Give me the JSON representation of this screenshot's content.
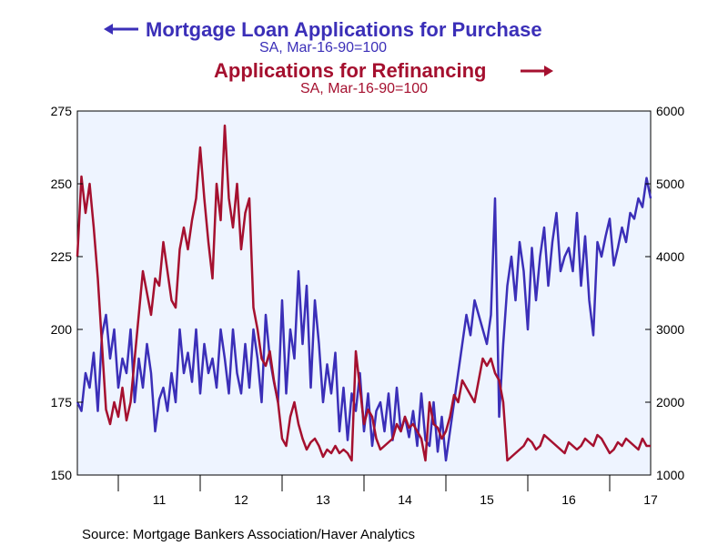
{
  "chart_data": {
    "type": "line",
    "title_purchase": "Mortgage Loan Applications for Purchase",
    "subtitle_purchase": "SA, Mar-16-90=100",
    "title_refi": "Applications for Refinancing",
    "subtitle_refi": "SA, Mar-16-90=100",
    "source": "Source:  Mortgage Bankers Association/Haver Analytics",
    "x_ticks": [
      "11",
      "12",
      "13",
      "14",
      "15",
      "16",
      "17"
    ],
    "x_tick_positions": [
      2011,
      2012,
      2013,
      2014,
      2015,
      2016,
      2017
    ],
    "xlim": [
      2010.0,
      2017.0
    ],
    "y_left": {
      "ylim": [
        150,
        275
      ],
      "ticks": [
        "275",
        "250",
        "225",
        "200",
        "175",
        "150"
      ],
      "tick_values": [
        275,
        250,
        225,
        200,
        175,
        150
      ]
    },
    "y_right": {
      "ylim": [
        1000,
        6000
      ],
      "ticks": [
        "6000",
        "5000",
        "4000",
        "3000",
        "2000",
        "1000"
      ],
      "tick_values": [
        6000,
        5000,
        4000,
        3000,
        2000,
        1000
      ]
    },
    "grid": false,
    "colors": {
      "purchase": "#3b2fb8",
      "refi": "#a5102f",
      "plot_bg": "#eef4ff"
    },
    "series": [
      {
        "name": "Mortgage Loan Applications for Purchase",
        "axis": "left",
        "x": [
          2010.0,
          2010.05,
          2010.1,
          2010.15,
          2010.2,
          2010.25,
          2010.3,
          2010.35,
          2010.4,
          2010.45,
          2010.5,
          2010.55,
          2010.6,
          2010.65,
          2010.7,
          2010.75,
          2010.8,
          2010.85,
          2010.9,
          2010.95,
          2011.0,
          2011.05,
          2011.1,
          2011.15,
          2011.2,
          2011.25,
          2011.3,
          2011.35,
          2011.4,
          2011.45,
          2011.5,
          2011.55,
          2011.6,
          2011.65,
          2011.7,
          2011.75,
          2011.8,
          2011.85,
          2011.9,
          2011.95,
          2012.0,
          2012.05,
          2012.1,
          2012.15,
          2012.2,
          2012.25,
          2012.3,
          2012.35,
          2012.4,
          2012.45,
          2012.5,
          2012.55,
          2012.6,
          2012.65,
          2012.7,
          2012.75,
          2012.8,
          2012.85,
          2012.9,
          2012.95,
          2013.0,
          2013.05,
          2013.1,
          2013.15,
          2013.2,
          2013.25,
          2013.3,
          2013.35,
          2013.4,
          2013.45,
          2013.5,
          2013.55,
          2013.6,
          2013.65,
          2013.7,
          2013.75,
          2013.8,
          2013.85,
          2013.9,
          2013.95,
          2014.0,
          2014.05,
          2014.1,
          2014.15,
          2014.2,
          2014.25,
          2014.3,
          2014.35,
          2014.4,
          2014.45,
          2014.5,
          2014.55,
          2014.6,
          2014.65,
          2014.7,
          2014.75,
          2014.8,
          2014.85,
          2014.9,
          2014.95,
          2015.0,
          2015.05,
          2015.1,
          2015.15,
          2015.2,
          2015.25,
          2015.3,
          2015.35,
          2015.4,
          2015.45,
          2015.5,
          2015.55,
          2015.6,
          2015.65,
          2015.7,
          2015.75,
          2015.8,
          2015.85,
          2015.9,
          2015.95,
          2016.0,
          2016.05,
          2016.1,
          2016.15,
          2016.2,
          2016.25,
          2016.3,
          2016.35,
          2016.4,
          2016.45,
          2016.5,
          2016.55,
          2016.6,
          2016.65,
          2016.7,
          2016.75,
          2016.8,
          2016.85,
          2016.9,
          2016.95,
          2017.0
        ],
        "values": [
          175,
          172,
          185,
          180,
          192,
          172,
          198,
          205,
          190,
          200,
          180,
          190,
          185,
          200,
          175,
          190,
          180,
          195,
          185,
          165,
          176,
          180,
          172,
          185,
          175,
          200,
          185,
          192,
          182,
          200,
          178,
          195,
          185,
          190,
          180,
          200,
          190,
          178,
          200,
          185,
          178,
          195,
          180,
          200,
          190,
          175,
          205,
          190,
          182,
          175,
          210,
          178,
          200,
          190,
          220,
          195,
          215,
          180,
          210,
          195,
          175,
          188,
          178,
          192,
          165,
          180,
          162,
          178,
          172,
          185,
          165,
          178,
          160,
          172,
          175,
          165,
          178,
          162,
          180,
          165,
          170,
          163,
          172,
          160,
          178,
          162,
          160,
          175,
          158,
          170,
          155,
          165,
          175,
          185,
          195,
          205,
          198,
          210,
          205,
          200,
          195,
          205,
          245,
          170,
          195,
          215,
          225,
          210,
          230,
          220,
          200,
          228,
          210,
          225,
          235,
          215,
          230,
          240,
          220,
          225,
          228,
          220,
          240,
          215,
          232,
          210,
          198,
          230,
          225,
          232,
          238,
          222,
          228,
          235,
          230,
          240,
          238,
          245,
          242,
          252,
          245
        ],
        "_note": ""
      },
      {
        "name": "Applications for Refinancing",
        "axis": "right",
        "x": [
          2010.0,
          2010.05,
          2010.1,
          2010.15,
          2010.2,
          2010.25,
          2010.3,
          2010.35,
          2010.4,
          2010.45,
          2010.5,
          2010.55,
          2010.6,
          2010.65,
          2010.7,
          2010.75,
          2010.8,
          2010.85,
          2010.9,
          2010.95,
          2011.0,
          2011.05,
          2011.1,
          2011.15,
          2011.2,
          2011.25,
          2011.3,
          2011.35,
          2011.4,
          2011.45,
          2011.5,
          2011.55,
          2011.6,
          2011.65,
          2011.7,
          2011.75,
          2011.8,
          2011.85,
          2011.9,
          2011.95,
          2012.0,
          2012.05,
          2012.1,
          2012.15,
          2012.2,
          2012.25,
          2012.3,
          2012.35,
          2012.4,
          2012.45,
          2012.5,
          2012.55,
          2012.6,
          2012.65,
          2012.7,
          2012.75,
          2012.8,
          2012.85,
          2012.9,
          2012.95,
          2013.0,
          2013.05,
          2013.1,
          2013.15,
          2013.2,
          2013.25,
          2013.3,
          2013.35,
          2013.4,
          2013.45,
          2013.5,
          2013.55,
          2013.6,
          2013.65,
          2013.7,
          2013.75,
          2013.8,
          2013.85,
          2013.9,
          2013.95,
          2014.0,
          2014.05,
          2014.1,
          2014.15,
          2014.2,
          2014.25,
          2014.3,
          2014.35,
          2014.4,
          2014.45,
          2014.5,
          2014.55,
          2014.6,
          2014.65,
          2014.7,
          2014.75,
          2014.8,
          2014.85,
          2014.9,
          2014.95,
          2015.0,
          2015.05,
          2015.1,
          2015.15,
          2015.2,
          2015.25,
          2015.3,
          2015.35,
          2015.4,
          2015.45,
          2015.5,
          2015.55,
          2015.6,
          2015.65,
          2015.7,
          2015.75,
          2015.8,
          2015.85,
          2015.9,
          2015.95,
          2016.0,
          2016.05,
          2016.1,
          2016.15,
          2016.2,
          2016.25,
          2016.3,
          2016.35,
          2016.4,
          2016.45,
          2016.5,
          2016.55,
          2016.6,
          2016.65,
          2016.7,
          2016.75,
          2016.8,
          2016.85,
          2016.9,
          2016.95,
          2017.0
        ],
        "values": [
          4000,
          5100,
          4600,
          5000,
          4400,
          3700,
          2800,
          1900,
          1700,
          2000,
          1800,
          2200,
          1750,
          2000,
          2600,
          3200,
          3800,
          3500,
          3200,
          3700,
          3600,
          4200,
          3800,
          3400,
          3300,
          4100,
          4400,
          4100,
          4500,
          4800,
          5500,
          4800,
          4200,
          3700,
          5000,
          4500,
          5800,
          4800,
          4400,
          5000,
          4100,
          4600,
          4800,
          3300,
          3000,
          2600,
          2500,
          2700,
          2300,
          2000,
          1500,
          1400,
          1800,
          2000,
          1700,
          1500,
          1350,
          1450,
          1500,
          1400,
          1250,
          1350,
          1300,
          1400,
          1300,
          1350,
          1300,
          1200,
          2700,
          2200,
          1700,
          1900,
          1800,
          1500,
          1350,
          1400,
          1450,
          1500,
          1700,
          1600,
          1800,
          1650,
          1700,
          1600,
          1500,
          1200,
          2000,
          1700,
          1650,
          1500,
          1600,
          1800,
          2100,
          2000,
          2300,
          2200,
          2100,
          2000,
          2300,
          2600,
          2500,
          2600,
          2400,
          2300,
          2000,
          1200,
          1250,
          1300,
          1350,
          1400,
          1500,
          1450,
          1350,
          1400,
          1550,
          1500,
          1450,
          1400,
          1350,
          1300,
          1450,
          1400,
          1350,
          1400,
          1500,
          1450,
          1400,
          1550,
          1500,
          1400,
          1300,
          1350,
          1450,
          1400,
          1500,
          1450,
          1400,
          1350,
          1500,
          1400,
          1400
        ],
        "_note": ""
      }
    ]
  }
}
